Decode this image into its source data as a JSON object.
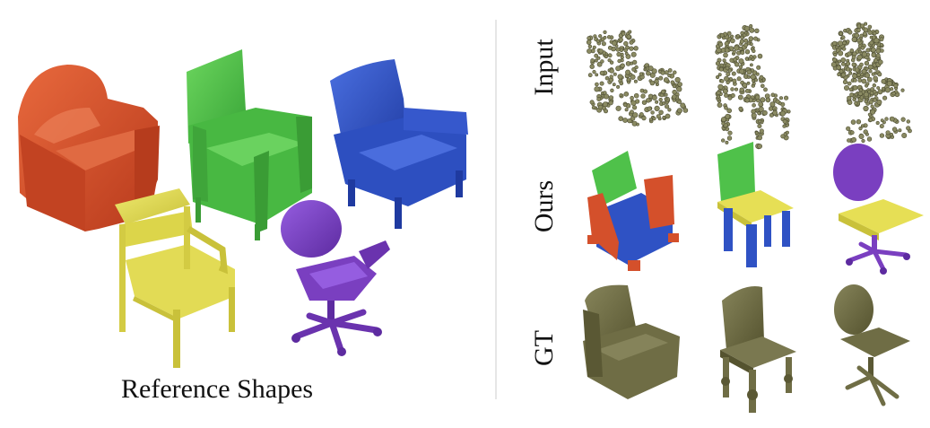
{
  "left_panel": {
    "caption": "Reference Shapes",
    "shapes": [
      {
        "name": "armchair",
        "color": "#d4502b"
      },
      {
        "name": "high-back-armchair",
        "color": "#4fc14a"
      },
      {
        "name": "wing-armchair",
        "color": "#2f52c4"
      },
      {
        "name": "dining-chair",
        "color": "#dcd54a"
      },
      {
        "name": "office-chair",
        "color": "#7a3fc0"
      }
    ]
  },
  "right_panel": {
    "rows": [
      {
        "label": "Input"
      },
      {
        "label": "Ours"
      },
      {
        "label": "GT"
      }
    ],
    "part_colors": {
      "back": "#4fc14a",
      "seat": "#e6df55",
      "base": "#2f52c4",
      "arm": "#d4502b",
      "office_back": "#7a3fc0"
    },
    "gt_color": "#6f6d45",
    "point_color": "#8a8a62"
  }
}
